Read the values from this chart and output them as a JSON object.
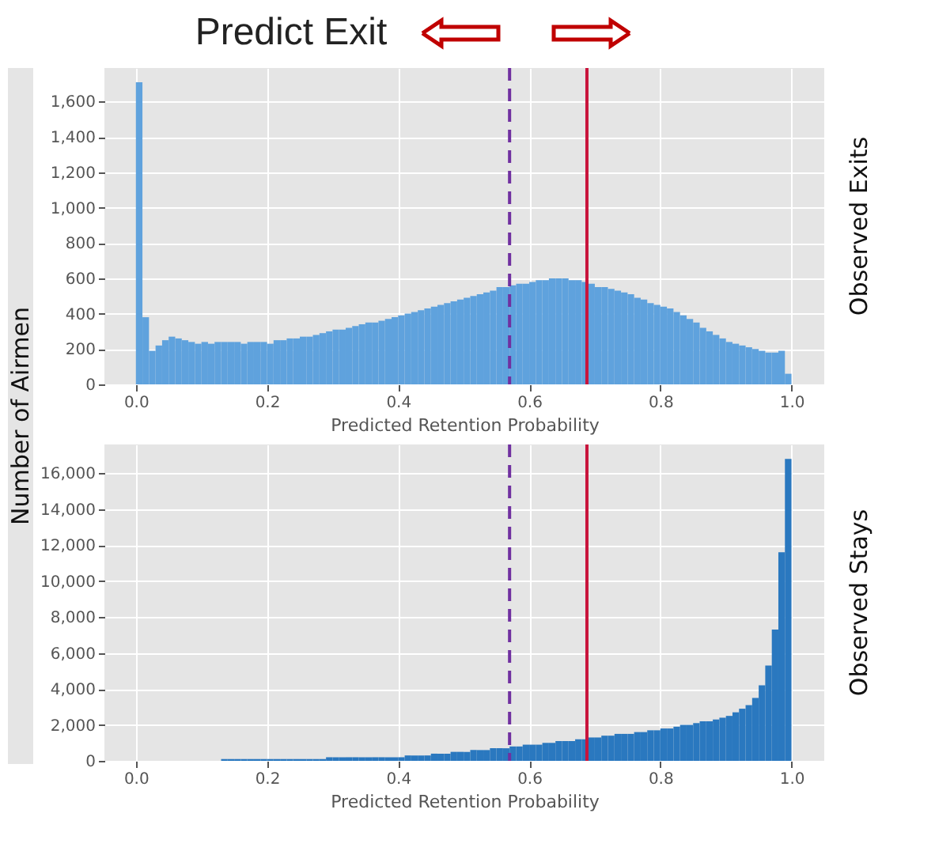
{
  "chart_data": [
    {
      "type": "histogram",
      "xlabel": "Predicted Retention Probability",
      "ylabel": "Number of Airmen",
      "color": "#5fa2dd",
      "annotations": [
        "Predict Exit",
        "Observed Exits"
      ],
      "bins": [
        0,
        0.01,
        0.02,
        0.03,
        0.04,
        0.05,
        0.06,
        0.07,
        0.08,
        0.09,
        0.1,
        0.11,
        0.12,
        0.13,
        0.14,
        0.15,
        0.16,
        0.17,
        0.18,
        0.19,
        0.2,
        0.21,
        0.22,
        0.23,
        0.24,
        0.25,
        0.26,
        0.27,
        0.28,
        0.29,
        0.3,
        0.31,
        0.32,
        0.33,
        0.34,
        0.35,
        0.36,
        0.37,
        0.38,
        0.39,
        0.4,
        0.41,
        0.42,
        0.43,
        0.44,
        0.45,
        0.46,
        0.47,
        0.48,
        0.49,
        0.5,
        0.51,
        0.52,
        0.53,
        0.54,
        0.55,
        0.56,
        0.57,
        0.58,
        0.59,
        0.6,
        0.61,
        0.62,
        0.63,
        0.64,
        0.65,
        0.66,
        0.67,
        0.68,
        0.69,
        0.7,
        0.71,
        0.72,
        0.73,
        0.74,
        0.75,
        0.76,
        0.77,
        0.78,
        0.79,
        0.8,
        0.81,
        0.82,
        0.83,
        0.84,
        0.85,
        0.86,
        0.87,
        0.88,
        0.89,
        0.9,
        0.91,
        0.92,
        0.93,
        0.94,
        0.95,
        0.96,
        0.97,
        0.98,
        0.99,
        1.0
      ],
      "values": [
        1710,
        380,
        190,
        220,
        250,
        270,
        260,
        250,
        240,
        230,
        240,
        230,
        240,
        240,
        240,
        240,
        230,
        240,
        240,
        240,
        230,
        250,
        250,
        260,
        260,
        270,
        270,
        280,
        290,
        300,
        310,
        310,
        320,
        330,
        340,
        350,
        350,
        360,
        370,
        380,
        390,
        400,
        410,
        420,
        430,
        440,
        450,
        460,
        470,
        480,
        490,
        500,
        510,
        520,
        530,
        550,
        550,
        560,
        570,
        570,
        580,
        590,
        590,
        600,
        600,
        600,
        590,
        590,
        580,
        570,
        550,
        550,
        540,
        530,
        520,
        510,
        490,
        480,
        460,
        450,
        440,
        430,
        410,
        390,
        370,
        350,
        320,
        300,
        280,
        260,
        240,
        230,
        220,
        210,
        200,
        190,
        180,
        180,
        190,
        60
      ],
      "xlim": [
        -0.048,
        1.05
      ],
      "ylim": [
        0,
        1790
      ],
      "xticks": [
        {
          "value": 0,
          "label": "0.0"
        },
        {
          "value": 0.2,
          "label": "0.2"
        },
        {
          "value": 0.4,
          "label": "0.4"
        },
        {
          "value": 0.6,
          "label": "0.6"
        },
        {
          "value": 0.8,
          "label": "0.8"
        },
        {
          "value": 1.0,
          "label": "1.0"
        }
      ],
      "yticks": [
        0,
        200,
        400,
        600,
        800,
        {
          "value": 1000,
          "label": "1,000"
        },
        {
          "value": 1200,
          "label": "1,200"
        },
        {
          "value": 1400,
          "label": "1,400"
        },
        {
          "value": 1600,
          "label": "1,600"
        }
      ],
      "ref_lines": [
        {
          "axis": "x",
          "value": 0.57,
          "color": "#7030a0",
          "line_style": "dashed"
        },
        {
          "axis": "x",
          "value": 0.688,
          "color": "#c8143c",
          "line_style": "solid"
        }
      ],
      "grid": true
    },
    {
      "type": "histogram",
      "xlabel": "Predicted Retention Probability",
      "color": "#2a78bf",
      "annotations": [
        "Observed Stays"
      ],
      "bins": [
        0,
        0.01,
        0.02,
        0.03,
        0.04,
        0.05,
        0.06,
        0.07,
        0.08,
        0.09,
        0.1,
        0.11,
        0.12,
        0.13,
        0.14,
        0.15,
        0.16,
        0.17,
        0.18,
        0.19,
        0.2,
        0.21,
        0.22,
        0.23,
        0.24,
        0.25,
        0.26,
        0.27,
        0.28,
        0.29,
        0.3,
        0.31,
        0.32,
        0.33,
        0.34,
        0.35,
        0.36,
        0.37,
        0.38,
        0.39,
        0.4,
        0.41,
        0.42,
        0.43,
        0.44,
        0.45,
        0.46,
        0.47,
        0.48,
        0.49,
        0.5,
        0.51,
        0.52,
        0.53,
        0.54,
        0.55,
        0.56,
        0.57,
        0.58,
        0.59,
        0.6,
        0.61,
        0.62,
        0.63,
        0.64,
        0.65,
        0.66,
        0.67,
        0.68,
        0.69,
        0.7,
        0.71,
        0.72,
        0.73,
        0.74,
        0.75,
        0.76,
        0.77,
        0.78,
        0.79,
        0.8,
        0.81,
        0.82,
        0.83,
        0.84,
        0.85,
        0.86,
        0.87,
        0.88,
        0.89,
        0.9,
        0.91,
        0.92,
        0.93,
        0.94,
        0.95,
        0.96,
        0.97,
        0.98,
        0.99,
        1.0
      ],
      "values": [
        0,
        0,
        0,
        0,
        0,
        0,
        0,
        0,
        0,
        0,
        0,
        0,
        0,
        100,
        100,
        100,
        100,
        100,
        100,
        100,
        100,
        100,
        100,
        100,
        100,
        100,
        100,
        100,
        100,
        200,
        200,
        200,
        200,
        200,
        200,
        200,
        200,
        200,
        200,
        200,
        200,
        300,
        300,
        300,
        300,
        400,
        400,
        400,
        500,
        500,
        500,
        600,
        600,
        600,
        700,
        700,
        700,
        800,
        800,
        900,
        900,
        900,
        1000,
        1000,
        1100,
        1100,
        1100,
        1200,
        1200,
        1300,
        1300,
        1400,
        1400,
        1500,
        1500,
        1500,
        1600,
        1600,
        1700,
        1700,
        1800,
        1800,
        1900,
        2000,
        2000,
        2100,
        2200,
        2200,
        2300,
        2400,
        2500,
        2700,
        2900,
        3100,
        3500,
        4200,
        5300,
        7300,
        11600,
        16800
      ],
      "xlim": [
        -0.048,
        1.05
      ],
      "ylim": [
        0,
        17600
      ],
      "xticks": [
        {
          "value": 0,
          "label": "0.0"
        },
        {
          "value": 0.2,
          "label": "0.2"
        },
        {
          "value": 0.4,
          "label": "0.4"
        },
        {
          "value": 0.6,
          "label": "0.6"
        },
        {
          "value": 0.8,
          "label": "0.8"
        },
        {
          "value": 1.0,
          "label": "1.0"
        }
      ],
      "yticks": [
        0,
        {
          "value": 2000,
          "label": "2,000"
        },
        {
          "value": 4000,
          "label": "4,000"
        },
        {
          "value": 6000,
          "label": "6,000"
        },
        {
          "value": 8000,
          "label": "8,000"
        },
        {
          "value": 10000,
          "label": "10,000"
        },
        {
          "value": 12000,
          "label": "12,000"
        },
        {
          "value": 14000,
          "label": "14,000"
        },
        {
          "value": 16000,
          "label": "16,000"
        }
      ],
      "ref_lines": [
        {
          "axis": "x",
          "value": 0.57,
          "color": "#7030a0",
          "line_style": "dashed"
        },
        {
          "axis": "x",
          "value": 0.688,
          "color": "#c8143c",
          "line_style": "solid"
        }
      ],
      "grid": true
    }
  ]
}
